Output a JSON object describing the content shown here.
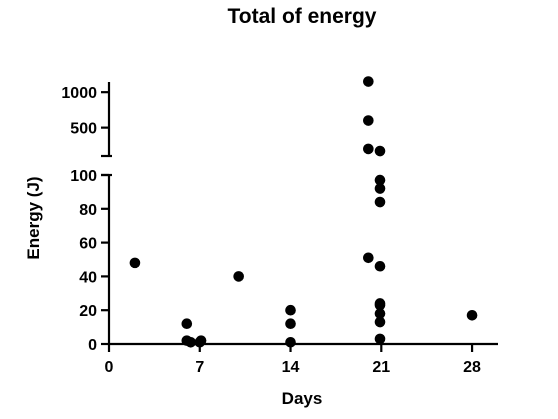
{
  "chart_data": {
    "type": "scatter",
    "title": "Total of energy",
    "xlabel": "Days",
    "ylabel": "Energy (J)",
    "xlim": [
      0,
      30
    ],
    "x_ticks": [
      0,
      7,
      14,
      21,
      28
    ],
    "x_tick_labels": [
      "0",
      "7",
      "14",
      "21",
      "28"
    ],
    "y_axis_broken": true,
    "ylim_lower": [
      0,
      100
    ],
    "ylim_upper": [
      100,
      1200
    ],
    "y_ticks_lower": [
      0,
      20,
      40,
      60,
      80,
      100
    ],
    "y_tick_labels_lower": [
      "0",
      "20",
      "40",
      "60",
      "80",
      "100"
    ],
    "y_ticks_upper": [
      500,
      1000
    ],
    "y_tick_labels_upper": [
      "500",
      "1000"
    ],
    "points": [
      {
        "x": 2,
        "y": 48
      },
      {
        "x": 6,
        "y": 12
      },
      {
        "x": 6,
        "y": 2
      },
      {
        "x": 6,
        "y": 1
      },
      {
        "x": 7,
        "y": 1
      },
      {
        "x": 7,
        "y": 2
      },
      {
        "x": 10,
        "y": 40
      },
      {
        "x": 14,
        "y": 20
      },
      {
        "x": 14,
        "y": 12
      },
      {
        "x": 14,
        "y": 1
      },
      {
        "x": 20,
        "y": 1150
      },
      {
        "x": 20,
        "y": 600
      },
      {
        "x": 20,
        "y": 200
      },
      {
        "x": 20,
        "y": 51
      },
      {
        "x": 21,
        "y": 170
      },
      {
        "x": 21,
        "y": 97
      },
      {
        "x": 21,
        "y": 92
      },
      {
        "x": 21,
        "y": 84
      },
      {
        "x": 21,
        "y": 46
      },
      {
        "x": 21,
        "y": 24
      },
      {
        "x": 21,
        "y": 23
      },
      {
        "x": 21,
        "y": 18
      },
      {
        "x": 21,
        "y": 13
      },
      {
        "x": 21,
        "y": 3
      },
      {
        "x": 28,
        "y": 17
      }
    ]
  }
}
